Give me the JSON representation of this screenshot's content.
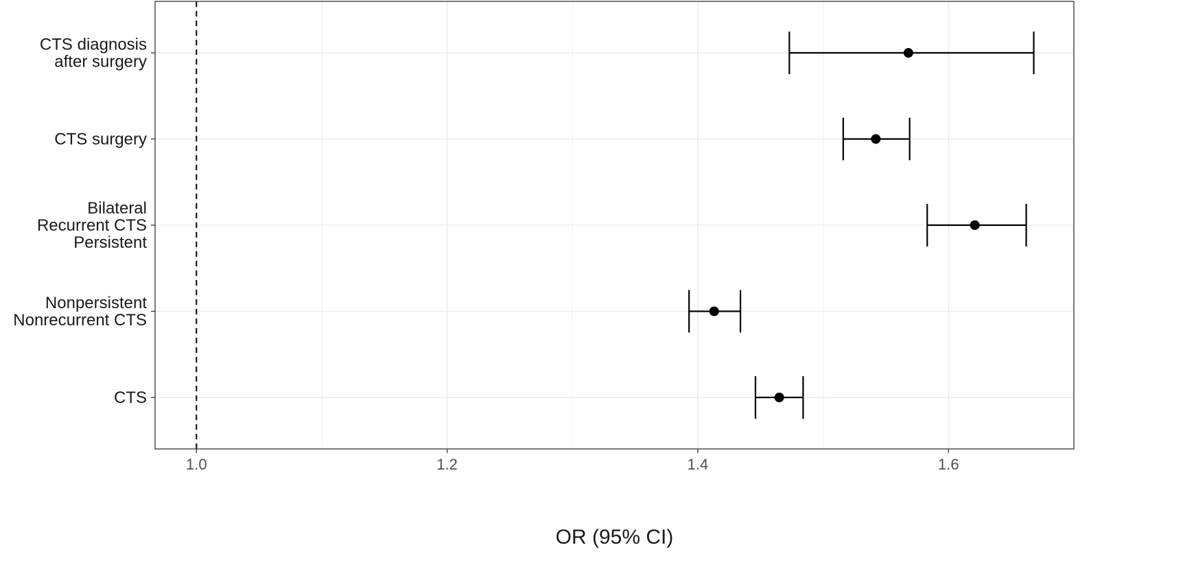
{
  "chart_data": {
    "type": "forest",
    "xlabel": "OR (95% CI)",
    "xlim": [
      0.967,
      1.7
    ],
    "xticks": [
      1.0,
      1.2,
      1.4,
      1.6
    ],
    "xtick_labels": [
      "1.0",
      "1.2",
      "1.4",
      "1.6"
    ],
    "reference_line": 1.0,
    "grid": true,
    "rows": [
      {
        "label_lines": [
          "CTS diagnosis",
          "after surgery"
        ],
        "or": 1.568,
        "lower": 1.473,
        "upper": 1.668
      },
      {
        "label_lines": [
          "CTS surgery"
        ],
        "or": 1.542,
        "lower": 1.516,
        "upper": 1.569
      },
      {
        "label_lines": [
          "Bilateral",
          "Recurrent CTS",
          "Persistent"
        ],
        "or": 1.621,
        "lower": 1.583,
        "upper": 1.662
      },
      {
        "label_lines": [
          "Nonpersistent",
          "Nonrecurrent CTS"
        ],
        "or": 1.413,
        "lower": 1.393,
        "upper": 1.434
      },
      {
        "label_lines": [
          "CTS"
        ],
        "or": 1.465,
        "lower": 1.446,
        "upper": 1.484
      }
    ]
  }
}
